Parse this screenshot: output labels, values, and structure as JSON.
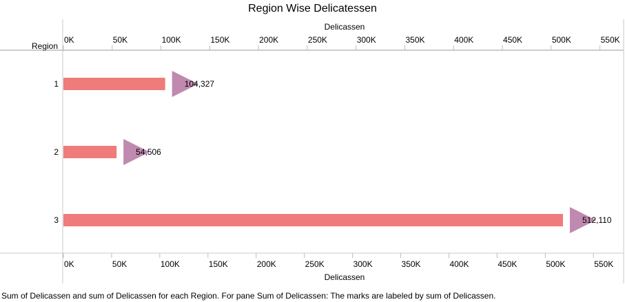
{
  "chart_data": {
    "type": "bar",
    "title": "Region Wise Delicatessen",
    "row_header": "Region",
    "top_axis_label": "Delicassen",
    "bottom_axis_label": "Delicassen",
    "categories": [
      "1",
      "2",
      "3"
    ],
    "values": [
      104327,
      54506,
      512110
    ],
    "value_labels": [
      "104,327",
      "54,506",
      "512,110"
    ],
    "top_ticks": [
      {
        "v": 0,
        "label": "0K"
      },
      {
        "v": 50000,
        "label": "50K"
      },
      {
        "v": 100000,
        "label": "100K"
      },
      {
        "v": 150000,
        "label": "150K"
      },
      {
        "v": 200000,
        "label": "200K"
      },
      {
        "v": 250000,
        "label": "250K"
      },
      {
        "v": 300000,
        "label": "300K"
      },
      {
        "v": 350000,
        "label": "350K"
      },
      {
        "v": 400000,
        "label": "400K"
      },
      {
        "v": 450000,
        "label": "450K"
      },
      {
        "v": 500000,
        "label": "500K"
      },
      {
        "v": 550000,
        "label": "550K"
      }
    ],
    "bottom_ticks": [
      {
        "v": 0,
        "label": "0K"
      },
      {
        "v": 50000,
        "label": "50K"
      },
      {
        "v": 100000,
        "label": "100K"
      },
      {
        "v": 150000,
        "label": "150K"
      },
      {
        "v": 200000,
        "label": "200K"
      },
      {
        "v": 250000,
        "label": "250K"
      },
      {
        "v": 300000,
        "label": "300K"
      },
      {
        "v": 350000,
        "label": "350K"
      },
      {
        "v": 400000,
        "label": "400K"
      },
      {
        "v": 450000,
        "label": "450K"
      },
      {
        "v": 500000,
        "label": "500K"
      },
      {
        "v": 550000,
        "label": "550K"
      }
    ],
    "top_xlim": [
      0,
      575000
    ],
    "bottom_xlim": [
      0,
      582000
    ],
    "bar_color": "#f07b7b",
    "arrow_color": "#b87ca7"
  },
  "caption": "Sum of Delicassen and sum of Delicassen for each Region.  For pane Sum of Delicassen:  The marks are labeled by sum of Delicassen."
}
